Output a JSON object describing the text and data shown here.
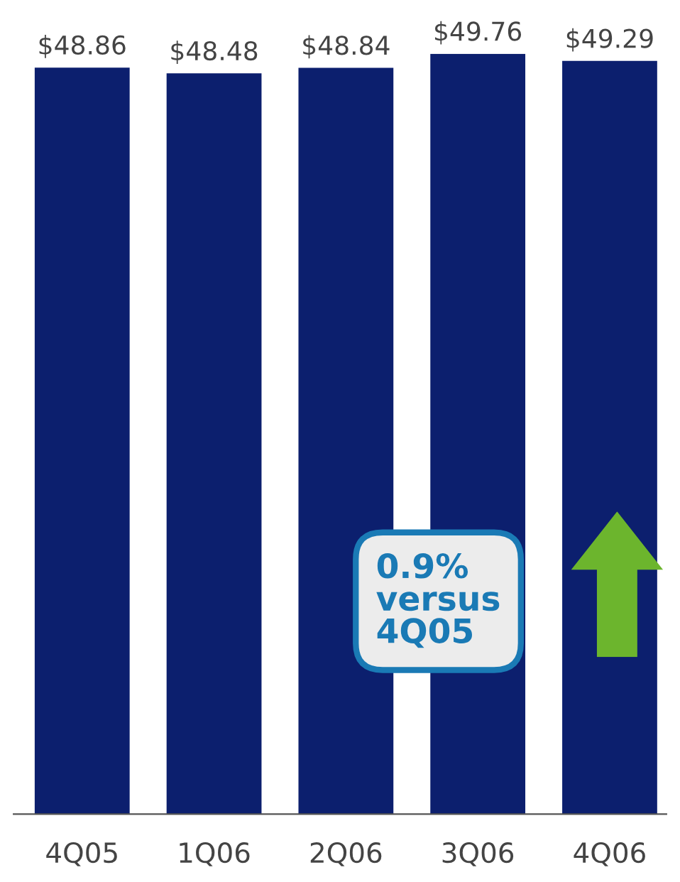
{
  "chart_data": {
    "type": "bar",
    "categories": [
      "4Q05",
      "1Q06",
      "2Q06",
      "3Q06",
      "4Q06"
    ],
    "values": [
      48.86,
      48.48,
      48.84,
      49.76,
      49.29
    ],
    "value_labels": [
      "$48.86",
      "$48.48",
      "$48.84",
      "$49.76",
      "$49.29"
    ],
    "color": "#0c1f6e",
    "annotations": [
      "0.9%\nversus\n4Q05"
    ],
    "grid": false,
    "legend": false
  }
}
